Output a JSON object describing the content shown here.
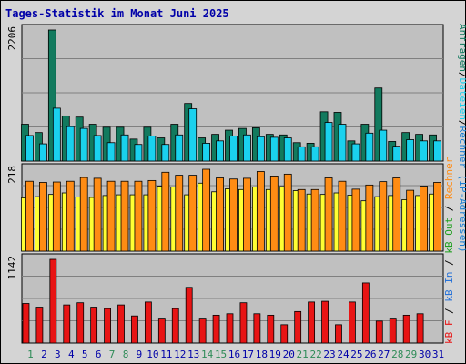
{
  "title": "Tages-Statistik im Monat Juni 2025",
  "colors": {
    "hits": "#127a5e",
    "files": "#1ad1ee",
    "sites": "#ffff33",
    "visits": "#ff8c14",
    "kbin": "#2672d8",
    "kbout": "#20a020",
    "kbf": "#e81414",
    "grid_bg": "#c0c0c0",
    "weekend_day": "#2e8b57",
    "weekday": "#0000a8"
  },
  "legend_top": [
    {
      "label": "Anfragen",
      "color_key": "hits"
    },
    {
      "label": "/",
      "color_key": "text"
    },
    {
      "label": "Dateien",
      "color_key": "files"
    },
    {
      "label": "/",
      "color_key": "text"
    },
    {
      "label": "Rechner (IP-Adressen)",
      "color_key": "visits_blue"
    }
  ],
  "legend_bottom": [
    {
      "label": "kB F",
      "color_key": "kbf"
    },
    {
      "label": "/",
      "color_key": "text"
    },
    {
      "label": "kB In",
      "color_key": "kbin"
    },
    {
      "label": "/",
      "color_key": "text"
    },
    {
      "label": "kB Out",
      "color_key": "kbout"
    },
    {
      "label": "/",
      "color_key": "text"
    },
    {
      "label": "Rechner",
      "color_key": "visits"
    }
  ],
  "chart_data": [
    {
      "type": "bar",
      "panel": "top",
      "ymax_label": "2206",
      "ylim": [
        0,
        2206
      ],
      "categories": [
        "1",
        "2",
        "3",
        "4",
        "5",
        "6",
        "7",
        "8",
        "9",
        "10",
        "11",
        "12",
        "13",
        "14",
        "15",
        "16",
        "17",
        "18",
        "19",
        "20",
        "21",
        "22",
        "23",
        "24",
        "25",
        "26",
        "27",
        "28",
        "29",
        "30",
        "31"
      ],
      "series": [
        {
          "name": "Anfragen",
          "values": [
            620,
            480,
            2206,
            760,
            740,
            620,
            570,
            570,
            370,
            570,
            390,
            620,
            970,
            390,
            450,
            520,
            550,
            560,
            450,
            440,
            310,
            300,
            830,
            820,
            340,
            620,
            1230,
            330,
            480,
            450,
            440
          ]
        },
        {
          "name": "Dateien",
          "values": [
            430,
            290,
            890,
            580,
            550,
            430,
            310,
            440,
            280,
            420,
            280,
            440,
            880,
            300,
            340,
            420,
            440,
            410,
            400,
            390,
            240,
            240,
            650,
            620,
            290,
            470,
            520,
            250,
            360,
            340,
            340
          ]
        }
      ]
    },
    {
      "type": "bar",
      "panel": "middle",
      "ymax_label": "218",
      "ylim": [
        0,
        218
      ],
      "categories": [
        "1",
        "2",
        "3",
        "4",
        "5",
        "6",
        "7",
        "8",
        "9",
        "10",
        "11",
        "12",
        "13",
        "14",
        "15",
        "16",
        "17",
        "18",
        "19",
        "20",
        "21",
        "22",
        "23",
        "24",
        "25",
        "26",
        "27",
        "28",
        "29",
        "30",
        "31"
      ],
      "series": [
        {
          "name": "Rechner (IP-Adressen)",
          "values": [
            142,
            145,
            151,
            155,
            144,
            143,
            148,
            150,
            150,
            150,
            173,
            171,
            150,
            181,
            158,
            166,
            164,
            171,
            164,
            172,
            161,
            152,
            151,
            155,
            149,
            134,
            145,
            148,
            137,
            148,
            152
          ]
        },
        {
          "name": "Rechner",
          "values": [
            186,
            183,
            184,
            186,
            196,
            194,
            186,
            186,
            186,
            188,
            210,
            202,
            202,
            218,
            195,
            192,
            194,
            212,
            200,
            205,
            164,
            164,
            195,
            186,
            165,
            176,
            185,
            195,
            162,
            173,
            183
          ]
        }
      ]
    },
    {
      "type": "bar",
      "panel": "bottom",
      "ymax_label": "1142",
      "ylim": [
        0,
        1142
      ],
      "categories": [
        "1",
        "2",
        "3",
        "4",
        "5",
        "6",
        "7",
        "8",
        "9",
        "10",
        "11",
        "12",
        "13",
        "14",
        "15",
        "16",
        "17",
        "18",
        "19",
        "20",
        "21",
        "22",
        "23",
        "24",
        "25",
        "26",
        "27",
        "28",
        "29",
        "30",
        "31"
      ],
      "series": [
        {
          "name": "kB F",
          "values": [
            540,
            490,
            1142,
            520,
            550,
            490,
            470,
            520,
            370,
            560,
            340,
            470,
            760,
            340,
            380,
            400,
            550,
            400,
            380,
            250,
            430,
            560,
            570,
            250,
            560,
            820,
            300,
            340,
            380,
            400,
            0
          ]
        }
      ]
    }
  ],
  "x_labels": [
    "1",
    "2",
    "3",
    "4",
    "5",
    "6",
    "7",
    "8",
    "9",
    "10",
    "11",
    "12",
    "13",
    "14",
    "15",
    "16",
    "17",
    "18",
    "19",
    "20",
    "21",
    "22",
    "23",
    "24",
    "25",
    "26",
    "27",
    "28",
    "29",
    "30",
    "31"
  ],
  "weekend_days": [
    1,
    7,
    8,
    14,
    15,
    21,
    22,
    28,
    29
  ]
}
